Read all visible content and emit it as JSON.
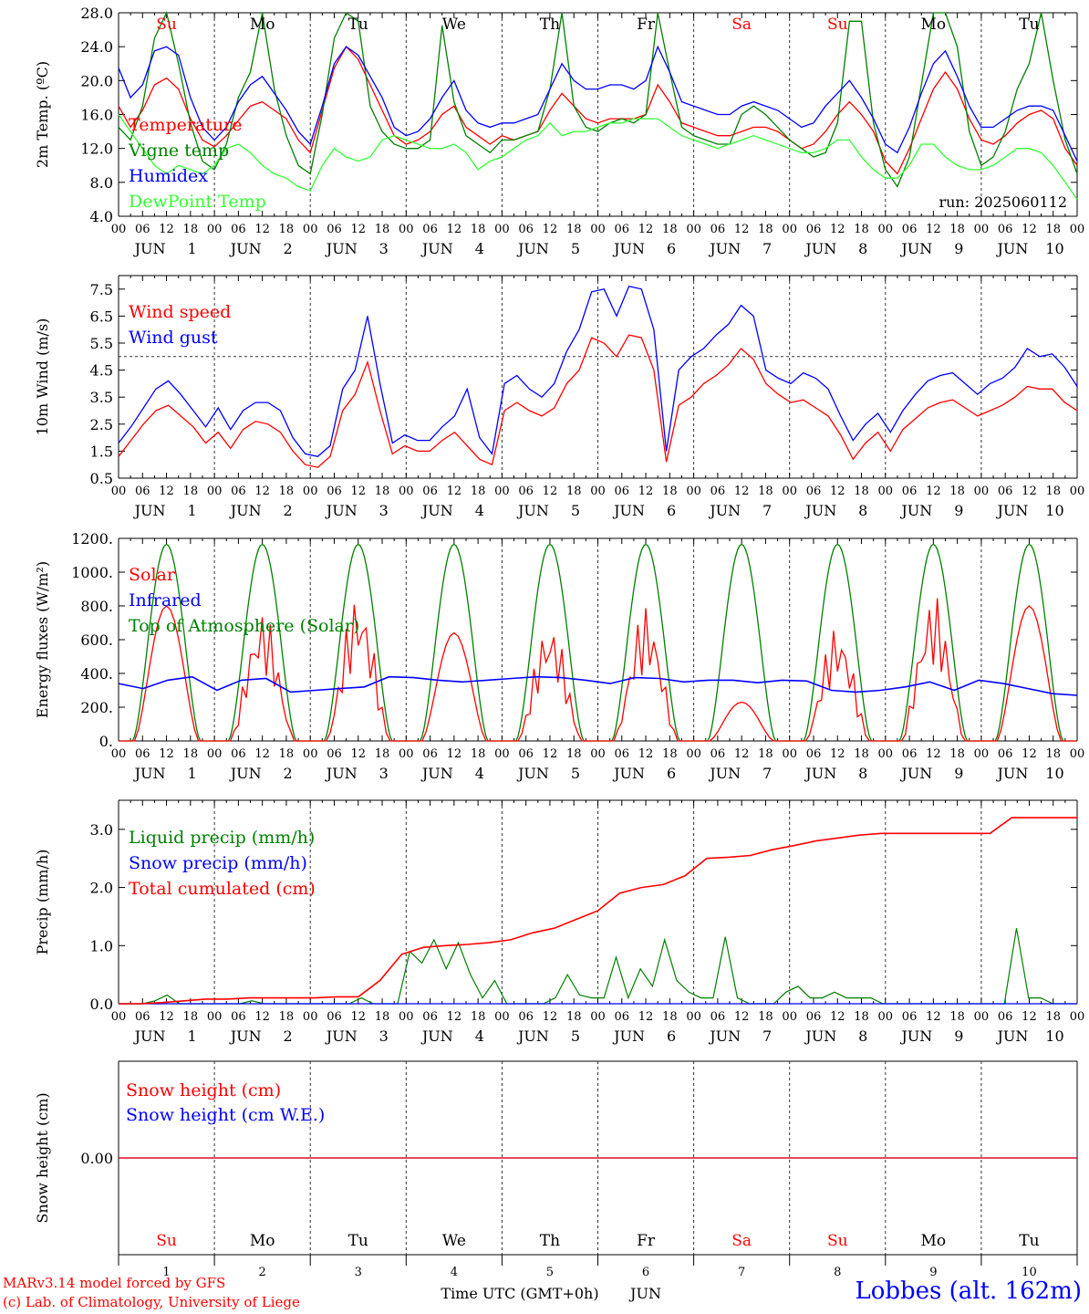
{
  "chart_data": [
    {
      "type": "line",
      "ylabel": "2m Temp. (ºC)",
      "ylim": [
        4,
        28
      ],
      "yticks": [
        "4.0",
        "8.0",
        "12.0",
        "16.0",
        "20.0",
        "24.0",
        "28.0"
      ],
      "day_of_week": [
        "Su",
        "Mo",
        "Tu",
        "We",
        "Th",
        "Fr",
        "Sa",
        "Su",
        "Mo",
        "Tu"
      ],
      "weekend_color": "#ff0000",
      "run_label": "run: 2025060112",
      "series": [
        {
          "name": "Temperature",
          "color": "#ff0000",
          "values": [
            17.0,
            14.5,
            16.5,
            19.5,
            20.3,
            19.0,
            15.5,
            13.0,
            12.2,
            13.5,
            15.3,
            17.0,
            17.5,
            16.5,
            15.5,
            13.0,
            11.5,
            16.5,
            21.5,
            24.0,
            22.5,
            19.5,
            16.5,
            13.5,
            12.5,
            13.0,
            14.0,
            16.0,
            17.0,
            14.5,
            13.5,
            12.5,
            13.5,
            13.0,
            13.5,
            14.0,
            16.5,
            18.5,
            17.0,
            15.5,
            15.0,
            15.5,
            15.5,
            15.5,
            16.0,
            19.5,
            17.5,
            15.0,
            14.5,
            14.0,
            13.5,
            13.5,
            14.0,
            14.5,
            14.5,
            14.0,
            13.0,
            12.0,
            12.5,
            14.0,
            16.0,
            17.5,
            16.0,
            14.0,
            10.5,
            9.0,
            12.0,
            15.5,
            19.0,
            21.0,
            19.0,
            15.5,
            13.0,
            12.5,
            13.5,
            15.0,
            16.0,
            16.5,
            15.5,
            12.0,
            10.0
          ]
        },
        {
          "name": "Vigne temp",
          "color": "#008000",
          "values": [
            14.5,
            13.0,
            17.0,
            25.0,
            28.0,
            22.0,
            15.0,
            10.5,
            9.5,
            12.5,
            18.0,
            21.0,
            28.0,
            19.0,
            13.5,
            10.0,
            9.0,
            16.0,
            25.0,
            28.0,
            27.0,
            17.0,
            14.0,
            12.5,
            12.0,
            12.0,
            13.0,
            26.5,
            17.5,
            13.5,
            12.5,
            11.5,
            13.0,
            13.0,
            13.5,
            14.0,
            19.0,
            28.0,
            17.0,
            14.5,
            14.0,
            15.0,
            15.5,
            15.0,
            16.0,
            28.0,
            21.0,
            14.5,
            13.5,
            13.0,
            12.5,
            12.5,
            16.0,
            17.0,
            16.0,
            14.5,
            13.0,
            12.0,
            11.0,
            11.5,
            15.0,
            27.0,
            27.0,
            15.0,
            9.5,
            7.5,
            11.0,
            19.5,
            28.0,
            28.0,
            24.0,
            14.0,
            10.0,
            11.0,
            14.0,
            19.0,
            22.0,
            28.0,
            20.0,
            13.0,
            9.0
          ]
        },
        {
          "name": "Humidex",
          "color": "#0000ff",
          "values": [
            21.5,
            18.0,
            19.5,
            23.5,
            24.0,
            23.0,
            18.0,
            14.5,
            13.0,
            14.5,
            17.5,
            19.5,
            20.5,
            18.5,
            16.5,
            14.0,
            12.5,
            17.0,
            22.0,
            24.0,
            23.0,
            20.5,
            18.0,
            14.5,
            13.5,
            14.0,
            15.5,
            18.0,
            20.0,
            16.5,
            15.0,
            14.5,
            15.0,
            15.0,
            15.5,
            16.0,
            19.0,
            22.0,
            20.0,
            19.0,
            19.0,
            19.5,
            19.5,
            19.0,
            20.0,
            24.0,
            21.0,
            17.5,
            17.0,
            16.5,
            16.0,
            16.0,
            17.0,
            17.5,
            17.0,
            16.5,
            15.5,
            14.5,
            15.0,
            17.0,
            18.5,
            20.0,
            18.0,
            15.5,
            12.5,
            11.5,
            14.5,
            18.5,
            22.0,
            23.5,
            20.5,
            17.0,
            14.5,
            14.5,
            15.5,
            16.5,
            17.0,
            17.0,
            16.5,
            13.5,
            10.5
          ]
        },
        {
          "name": "DewPoint Temp",
          "color": "#33ff33",
          "values": [
            16.0,
            14.0,
            12.0,
            10.0,
            9.0,
            10.0,
            9.5,
            9.0,
            10.0,
            12.0,
            12.5,
            11.5,
            10.0,
            9.0,
            8.5,
            7.5,
            7.0,
            10.0,
            12.0,
            11.0,
            10.5,
            11.0,
            13.0,
            13.5,
            13.0,
            12.5,
            12.0,
            12.0,
            12.5,
            11.5,
            9.5,
            10.5,
            11.0,
            12.0,
            13.0,
            13.5,
            15.0,
            13.5,
            14.0,
            14.0,
            14.5,
            15.0,
            15.0,
            15.5,
            15.5,
            15.5,
            14.5,
            13.5,
            13.0,
            12.5,
            12.0,
            12.5,
            13.0,
            13.5,
            13.0,
            12.5,
            12.0,
            11.5,
            11.5,
            12.0,
            13.0,
            13.0,
            11.0,
            9.5,
            8.5,
            8.5,
            10.0,
            12.5,
            12.5,
            11.0,
            10.0,
            9.5,
            9.5,
            10.0,
            11.0,
            12.0,
            12.0,
            11.5,
            10.0,
            8.0,
            6.0
          ]
        }
      ]
    },
    {
      "type": "line",
      "ylabel": "10m Wind (m/s)",
      "ylim": [
        0.5,
        8
      ],
      "yticks": [
        "0.5",
        "1.5",
        "2.5",
        "3.5",
        "4.5",
        "5.5",
        "6.5",
        "7.5"
      ],
      "ref_line": 5,
      "series": [
        {
          "name": "Wind speed",
          "color": "#ff0000",
          "values": [
            1.3,
            1.9,
            2.5,
            3.0,
            3.2,
            2.8,
            2.4,
            1.8,
            2.2,
            1.6,
            2.3,
            2.6,
            2.5,
            2.2,
            1.5,
            1.0,
            0.9,
            1.3,
            3.0,
            3.6,
            4.8,
            3.0,
            1.4,
            1.7,
            1.5,
            1.5,
            1.9,
            2.2,
            1.7,
            1.2,
            1.0,
            3.0,
            3.3,
            3.0,
            2.8,
            3.1,
            4.0,
            4.5,
            5.7,
            5.5,
            5.0,
            5.8,
            5.7,
            4.5,
            1.1,
            3.2,
            3.5,
            4.0,
            4.3,
            4.7,
            5.3,
            4.9,
            4.0,
            3.6,
            3.3,
            3.4,
            3.1,
            2.8,
            2.1,
            1.2,
            1.8,
            2.2,
            1.5,
            2.3,
            2.7,
            3.1,
            3.3,
            3.4,
            3.1,
            2.8,
            3.0,
            3.2,
            3.5,
            3.9,
            3.8,
            3.8,
            3.3,
            3.0
          ]
        },
        {
          "name": "Wind gust",
          "color": "#0000ff",
          "values": [
            1.8,
            2.4,
            3.1,
            3.8,
            4.1,
            3.6,
            3.0,
            2.4,
            3.1,
            2.3,
            3.0,
            3.3,
            3.3,
            3.0,
            2.0,
            1.4,
            1.3,
            1.7,
            3.8,
            4.5,
            6.5,
            4.0,
            1.8,
            2.1,
            1.9,
            1.9,
            2.4,
            2.8,
            3.8,
            2.0,
            1.4,
            4.0,
            4.3,
            3.8,
            3.5,
            4.0,
            5.2,
            6.0,
            7.4,
            7.5,
            6.5,
            7.6,
            7.5,
            6.0,
            1.5,
            4.5,
            5.0,
            5.3,
            5.8,
            6.2,
            6.9,
            6.5,
            4.5,
            4.2,
            4.0,
            4.4,
            4.2,
            3.8,
            2.8,
            1.9,
            2.5,
            2.9,
            2.2,
            3.0,
            3.6,
            4.1,
            4.3,
            4.4,
            4.0,
            3.6,
            4.0,
            4.2,
            4.6,
            5.3,
            5.0,
            5.1,
            4.6,
            3.9
          ]
        }
      ]
    },
    {
      "type": "line",
      "ylabel": "Energy fluxes (W/m²)",
      "ylim": [
        0,
        1200
      ],
      "yticks": [
        "0.",
        "200.",
        "400.",
        "600.",
        "800.",
        "1000.",
        "1200."
      ],
      "series": [
        {
          "name": "Solar",
          "color": "#ff0000",
          "peaks": [
            800,
            780,
            880,
            640,
            720,
            800,
            230,
            690,
            870,
            800
          ]
        },
        {
          "name": "Infrared",
          "color": "#0000ff",
          "values": [
            340,
            310,
            360,
            380,
            300,
            360,
            370,
            290,
            300,
            310,
            320,
            380,
            375,
            360,
            350,
            360,
            370,
            380,
            375,
            360,
            340,
            375,
            370,
            350,
            360,
            360,
            345,
            360,
            355,
            300,
            290,
            300,
            320,
            350,
            300,
            360,
            340,
            310,
            280,
            270
          ]
        },
        {
          "name": "Top of Atmosphere (Solar)",
          "color": "#008000",
          "peaks": [
            1165,
            1165,
            1165,
            1165,
            1165,
            1165,
            1165,
            1165,
            1165,
            1165
          ]
        }
      ]
    },
    {
      "type": "line",
      "ylabel": "Precip (mm/h)",
      "ylim": [
        0,
        3.5
      ],
      "yticks": [
        "0.0",
        "1.0",
        "2.0",
        "3.0"
      ],
      "series": [
        {
          "name": "Liquid precip (mm/h)",
          "color": "#008000",
          "values": [
            0,
            0,
            0,
            0.05,
            0.15,
            0,
            0,
            0,
            0,
            0,
            0,
            0.05,
            0,
            0,
            0,
            0,
            0,
            0,
            0,
            0,
            0.1,
            0,
            0,
            0,
            0.9,
            0.7,
            1.1,
            0.6,
            1.05,
            0.5,
            0.1,
            0.4,
            0,
            0,
            0,
            0,
            0.1,
            0.5,
            0.15,
            0.1,
            0.1,
            0.8,
            0.1,
            0.6,
            0.3,
            1.1,
            0.4,
            0.2,
            0.1,
            0.1,
            1.15,
            0.1,
            0,
            0,
            0,
            0.2,
            0.3,
            0.1,
            0.1,
            0.2,
            0.1,
            0.1,
            0.1,
            0,
            0,
            0,
            0,
            0,
            0,
            0,
            0,
            0,
            0,
            0,
            1.3,
            0.1,
            0.1,
            0,
            0,
            0
          ]
        },
        {
          "name": "Snow precip (mm/h)",
          "color": "#0000ff",
          "values": [
            0,
            0
          ]
        },
        {
          "name": "Total cumulated (cm)",
          "color": "#ff0000",
          "values": [
            0,
            0,
            0.02,
            0.05,
            0.08,
            0.08,
            0.1,
            0.1,
            0.1,
            0.1,
            0.12,
            0.12,
            0.4,
            0.85,
            0.97,
            1.0,
            1.02,
            1.05,
            1.1,
            1.22,
            1.3,
            1.45,
            1.6,
            1.9,
            2.0,
            2.05,
            2.2,
            2.5,
            2.52,
            2.55,
            2.65,
            2.72,
            2.8,
            2.85,
            2.9,
            2.93,
            2.93,
            2.93,
            2.93,
            2.93,
            2.93,
            3.2,
            3.2,
            3.2,
            3.2
          ]
        }
      ]
    },
    {
      "type": "line",
      "ylabel": "Snow height (cm)",
      "ytick": "0.00",
      "series": [
        {
          "name": "Snow height (cm)",
          "color": "#ff0000",
          "values": [
            0,
            0
          ]
        },
        {
          "name": "Snow height (cm W.E.)",
          "color": "#0000ff",
          "values": [
            0,
            0
          ]
        }
      ]
    }
  ],
  "x_axis": {
    "hour_ticks": [
      "00",
      "06",
      "12",
      "18"
    ],
    "end_tick": "00",
    "month": "JUN",
    "days": [
      "1",
      "2",
      "3",
      "4",
      "5",
      "6",
      "7",
      "8",
      "9",
      "10"
    ],
    "label": "Time UTC (GMT+0h)",
    "label_month": "JUN"
  },
  "footer": {
    "model": "MARv3.14 model forced by GFS",
    "copyright": "(c) Lab. of Climatology, University of Liege",
    "station": "Lobbes (alt. 162m)"
  }
}
